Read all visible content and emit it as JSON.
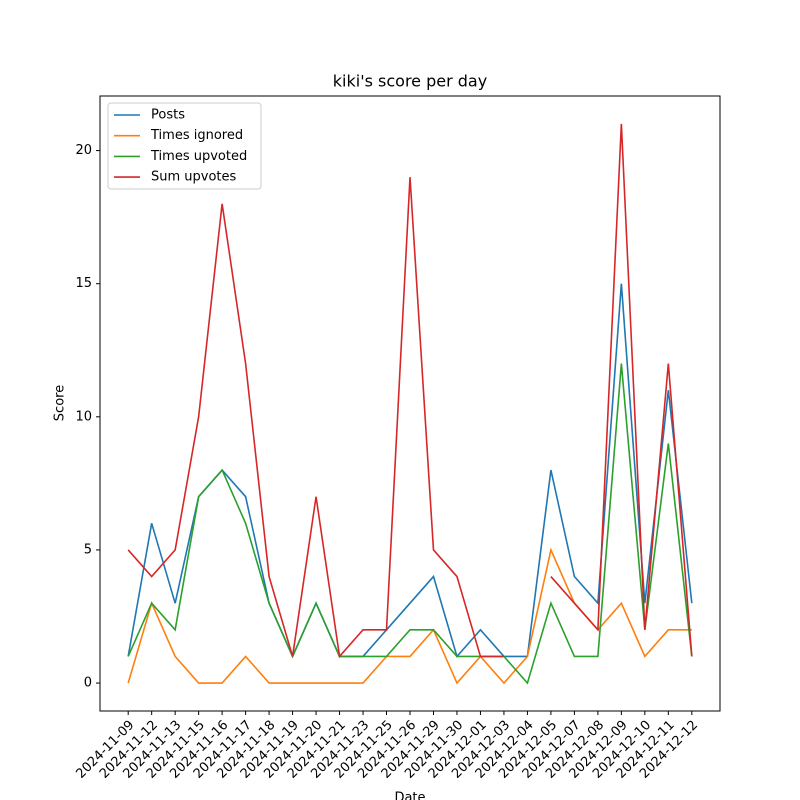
{
  "chart_data": {
    "type": "line",
    "title": "kiki's score per day",
    "xlabel": "Date",
    "ylabel": "Score",
    "categories": [
      "2024-11-09",
      "2024-11-12",
      "2024-11-13",
      "2024-11-15",
      "2024-11-16",
      "2024-11-17",
      "2024-11-18",
      "2024-11-19",
      "2024-11-20",
      "2024-11-21",
      "2024-11-23",
      "2024-11-25",
      "2024-11-26",
      "2024-11-29",
      "2024-11-30",
      "2024-12-01",
      "2024-12-03",
      "2024-12-04",
      "2024-12-05",
      "2024-12-07",
      "2024-12-08",
      "2024-12-09",
      "2024-12-10",
      "2024-12-11",
      "2024-12-12"
    ],
    "series": [
      {
        "name": "Posts",
        "color": "#1f77b4",
        "values": [
          1,
          6,
          3,
          7,
          8,
          7,
          3,
          1,
          3,
          1,
          1,
          2,
          3,
          4,
          1,
          2,
          1,
          1,
          8,
          4,
          3,
          15,
          3,
          11,
          3
        ]
      },
      {
        "name": "Times ignored",
        "color": "#ff7f0e",
        "values": [
          0,
          3,
          1,
          0,
          0,
          1,
          0,
          0,
          0,
          0,
          0,
          1,
          1,
          2,
          0,
          1,
          0,
          1,
          5,
          3,
          2,
          3,
          1,
          2,
          2
        ]
      },
      {
        "name": "Times upvoted",
        "color": "#2ca02c",
        "values": [
          1,
          3,
          2,
          7,
          8,
          6,
          3,
          1,
          3,
          1,
          1,
          1,
          2,
          2,
          1,
          1,
          1,
          0,
          3,
          1,
          1,
          12,
          2,
          9,
          1
        ]
      },
      {
        "name": "Sum upvotes",
        "color": "#d62728",
        "values": [
          5,
          4,
          5,
          10,
          18,
          12,
          4,
          1,
          7,
          1,
          2,
          2,
          19,
          5,
          4,
          1,
          1,
          null,
          4,
          3,
          2,
          21,
          2,
          12,
          1
        ]
      }
    ],
    "ylim": [
      -1.05,
      22.05
    ],
    "yticks": [
      0,
      5,
      10,
      15,
      20
    ],
    "legend": "upper left"
  }
}
